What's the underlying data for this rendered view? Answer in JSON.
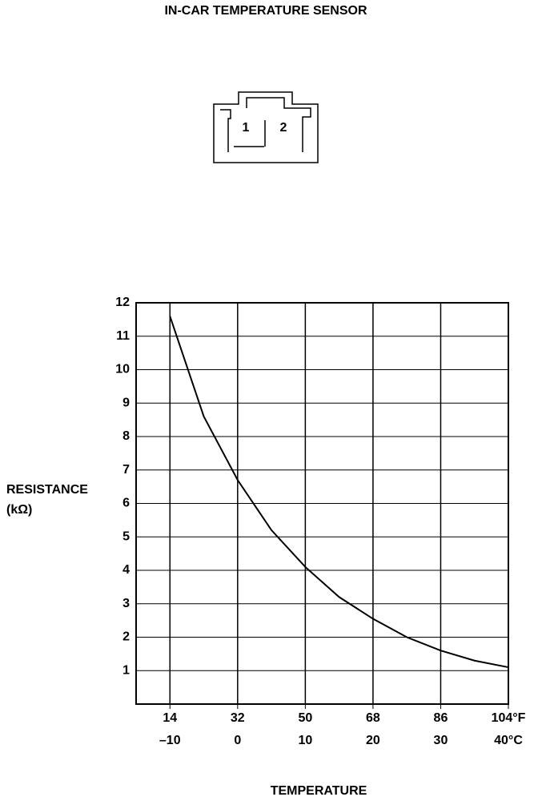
{
  "title": "IN-CAR TEMPERATURE SENSOR",
  "connector": {
    "pins": [
      "1",
      "2"
    ]
  },
  "chart_data": {
    "type": "line",
    "ylabel": [
      "RESISTANCE",
      "(kΩ)"
    ],
    "xlabel": "TEMPERATURE",
    "xlim": [
      -15,
      40
    ],
    "xticks": [
      {
        "value": -10,
        "label": "–10"
      },
      0,
      10,
      20,
      30,
      {
        "value": 40,
        "label": "40°C"
      }
    ],
    "x2lim": [
      5,
      104
    ],
    "x2ticks": [
      14,
      32,
      50,
      68,
      86,
      {
        "value": 104,
        "label": "104°F"
      }
    ],
    "ylim": [
      0,
      12
    ],
    "yticks": [
      1,
      2,
      3,
      4,
      5,
      6,
      7,
      8,
      9,
      10,
      11,
      12
    ],
    "grid": true,
    "series": [
      {
        "color": "#000000",
        "x": [
          -10,
          -5,
          0,
          5,
          10,
          15,
          20,
          25,
          30,
          35,
          40
        ],
        "values": [
          11.6,
          8.6,
          6.7,
          5.2,
          4.1,
          3.2,
          2.55,
          2.0,
          1.6,
          1.3,
          1.1
        ]
      }
    ]
  }
}
